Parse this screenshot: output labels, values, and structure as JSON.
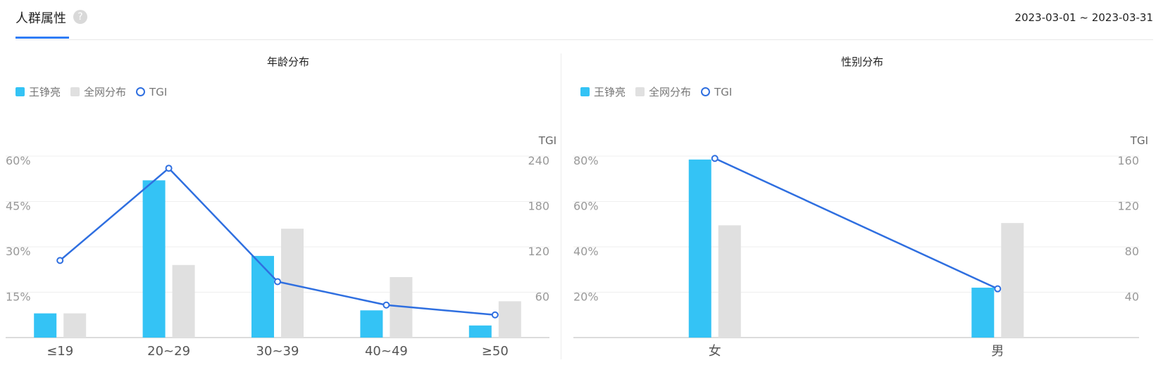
{
  "header": {
    "tab_title": "人群属性",
    "help_glyph": "?",
    "date_range": "2023-03-01 ~ 2023-03-31"
  },
  "colors": {
    "primary": "#34c3f5",
    "compare": "#e0e0e0",
    "tgi_line": "#2f6fe0",
    "accent": "#2f7df6"
  },
  "age_panel": {
    "title": "年龄分布",
    "legend": [
      "王铮亮",
      "全网分布",
      "TGI"
    ]
  },
  "gender_panel": {
    "title": "性别分布",
    "legend": [
      "王铮亮",
      "全网分布",
      "TGI"
    ]
  },
  "chart_data": [
    {
      "type": "bar",
      "title": "年龄分布",
      "categories": [
        "≤19",
        "20~29",
        "30~39",
        "40~49",
        "≥50"
      ],
      "series": [
        {
          "name": "王铮亮",
          "axis": "left",
          "values": [
            8,
            52,
            27,
            9,
            4
          ]
        },
        {
          "name": "全网分布",
          "axis": "left",
          "values": [
            8,
            24,
            36,
            20,
            12
          ]
        },
        {
          "name": "TGI",
          "type": "line",
          "axis": "right",
          "values": [
            102,
            224,
            74,
            43,
            30
          ]
        }
      ],
      "y_left": {
        "ticks": [
          "15%",
          "30%",
          "45%",
          "60%"
        ],
        "ylim": [
          0,
          60
        ]
      },
      "y_right": {
        "label": "TGI",
        "ticks": [
          "60",
          "120",
          "180",
          "240"
        ],
        "ylim": [
          0,
          240
        ]
      },
      "grid": true,
      "legend_position": "top-left"
    },
    {
      "type": "bar",
      "title": "性别分布",
      "categories": [
        "女",
        "男"
      ],
      "series": [
        {
          "name": "王铮亮",
          "axis": "left",
          "values": [
            78.5,
            22
          ]
        },
        {
          "name": "全网分布",
          "axis": "left",
          "values": [
            49.5,
            50.5
          ]
        },
        {
          "name": "TGI",
          "type": "line",
          "axis": "right",
          "values": [
            158,
            43
          ]
        }
      ],
      "y_left": {
        "ticks": [
          "20%",
          "40%",
          "60%",
          "80%"
        ],
        "ylim": [
          0,
          80
        ]
      },
      "y_right": {
        "label": "TGI",
        "ticks": [
          "40",
          "80",
          "120",
          "160"
        ],
        "ylim": [
          0,
          160
        ]
      },
      "grid": true,
      "legend_position": "top-left"
    }
  ]
}
